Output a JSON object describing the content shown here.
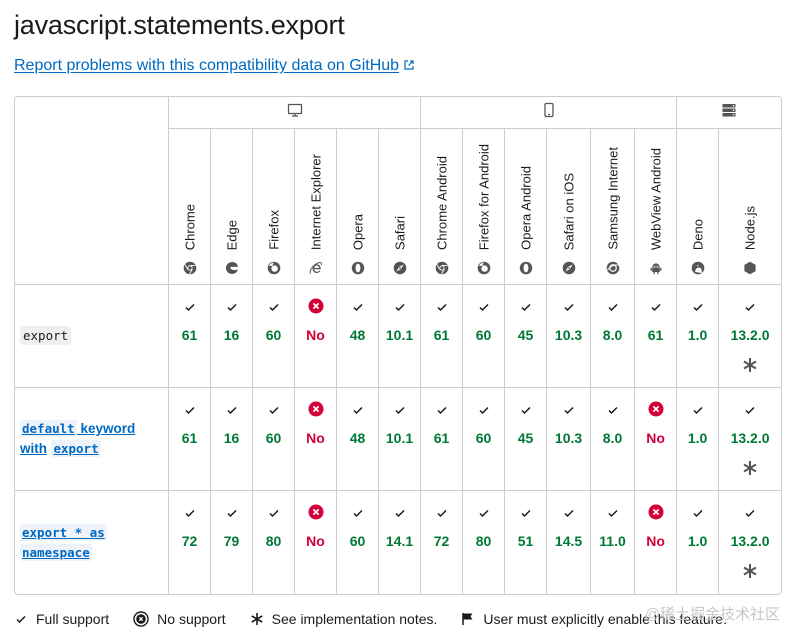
{
  "title": "javascript.statements.export",
  "report_link": "Report problems with this compatibility data on GitHub",
  "platforms": [
    {
      "name": "desktop",
      "icon": "desktop-icon",
      "span": 6
    },
    {
      "name": "mobile",
      "icon": "mobile-icon",
      "span": 6
    },
    {
      "name": "server",
      "icon": "server-icon",
      "span": 2
    }
  ],
  "browsers": [
    {
      "name": "Chrome",
      "icon": "chrome-icon"
    },
    {
      "name": "Edge",
      "icon": "edge-icon"
    },
    {
      "name": "Firefox",
      "icon": "firefox-icon"
    },
    {
      "name": "Internet Explorer",
      "icon": "internet-explorer-icon"
    },
    {
      "name": "Opera",
      "icon": "opera-icon"
    },
    {
      "name": "Safari",
      "icon": "safari-icon"
    },
    {
      "name": "Chrome Android",
      "icon": "chrome-icon"
    },
    {
      "name": "Firefox for Android",
      "icon": "firefox-icon"
    },
    {
      "name": "Opera Android",
      "icon": "opera-icon"
    },
    {
      "name": "Safari on iOS",
      "icon": "safari-icon"
    },
    {
      "name": "Samsung Internet",
      "icon": "samsung-internet-icon"
    },
    {
      "name": "WebView Android",
      "icon": "android-icon"
    },
    {
      "name": "Deno",
      "icon": "deno-icon"
    },
    {
      "name": "Node.js",
      "icon": "nodejs-icon"
    }
  ],
  "features": [
    {
      "name": "export",
      "type": "code",
      "support": [
        "61",
        "16",
        "60",
        "No",
        "48",
        "10.1",
        "61",
        "60",
        "45",
        "10.3",
        "8.0",
        "61",
        "1.0",
        "13.2.0"
      ],
      "notes": [
        false,
        false,
        false,
        false,
        false,
        false,
        false,
        false,
        false,
        false,
        false,
        false,
        false,
        true
      ]
    },
    {
      "name_parts": [
        "default",
        " keyword",
        "with",
        "export"
      ],
      "type": "link",
      "support": [
        "61",
        "16",
        "60",
        "No",
        "48",
        "10.1",
        "61",
        "60",
        "45",
        "10.3",
        "8.0",
        "No",
        "1.0",
        "13.2.0"
      ],
      "notes": [
        false,
        false,
        false,
        false,
        false,
        false,
        false,
        false,
        false,
        false,
        false,
        false,
        false,
        true
      ]
    },
    {
      "name_parts": [
        "export * as",
        "namespace"
      ],
      "type": "link",
      "support": [
        "72",
        "79",
        "80",
        "No",
        "60",
        "14.1",
        "72",
        "80",
        "51",
        "14.5",
        "11.0",
        "No",
        "1.0",
        "13.2.0"
      ],
      "notes": [
        false,
        false,
        false,
        false,
        false,
        false,
        false,
        false,
        false,
        false,
        false,
        false,
        false,
        true
      ]
    }
  ],
  "legend": {
    "full": "Full support",
    "none": "No support",
    "notes": "See implementation notes.",
    "flag": "User must explicitly enable this feature."
  },
  "watermark": "@稀土掘金技术社区",
  "colors": {
    "yes": "#007936",
    "no": "#d30038",
    "link": "#0069c2"
  }
}
